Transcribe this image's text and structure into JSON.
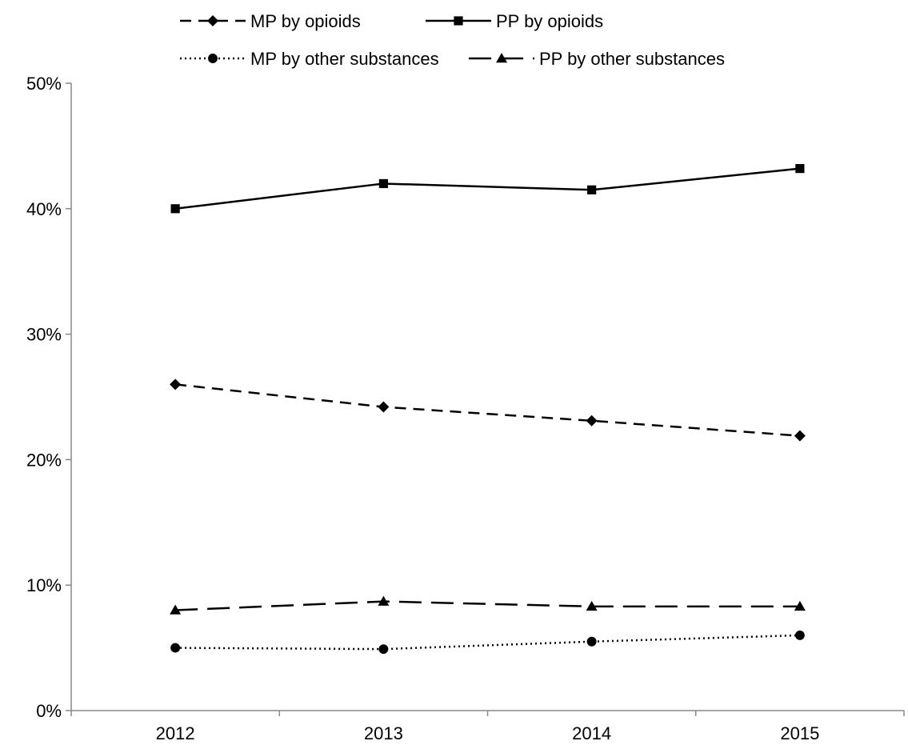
{
  "chart_data": {
    "type": "line",
    "categories": [
      "2012",
      "2013",
      "2014",
      "2015"
    ],
    "ylim": [
      0,
      0.5
    ],
    "yticks": [
      {
        "value": 0.0,
        "label": "0%"
      },
      {
        "value": 0.1,
        "label": "10%"
      },
      {
        "value": 0.2,
        "label": "20%"
      },
      {
        "value": 0.3,
        "label": "30%"
      },
      {
        "value": 0.4,
        "label": "40%"
      },
      {
        "value": 0.5,
        "label": "50%"
      }
    ],
    "grid": false,
    "legend_position": "top",
    "series": [
      {
        "name": "MP by opioids",
        "values": [
          0.26,
          0.242,
          0.231,
          0.219
        ],
        "marker": "diamond",
        "line_style": "dashed",
        "color": "#000000"
      },
      {
        "name": "PP by opioids",
        "values": [
          0.4,
          0.42,
          0.415,
          0.432
        ],
        "marker": "square",
        "line_style": "solid",
        "color": "#000000"
      },
      {
        "name": "MP by other substances",
        "values": [
          0.05,
          0.049,
          0.055,
          0.06
        ],
        "marker": "circle",
        "line_style": "dotted",
        "color": "#000000"
      },
      {
        "name": "PP by other substances",
        "values": [
          0.08,
          0.087,
          0.083,
          0.083
        ],
        "marker": "triangle",
        "line_style": "long-dashed",
        "color": "#000000"
      }
    ]
  }
}
